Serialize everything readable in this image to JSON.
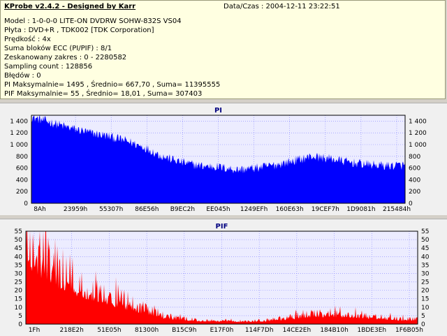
{
  "header": {
    "app_title": "KProbe v2.4.2 - Designed by Karr",
    "datetime": "Data/Czas : 2004-12-11 23:22:51",
    "lines": [
      "Model : 1-0-0-0 LITE-ON DVDRW SOHW-832S  VS04",
      "Płyta : DVD+R , TDK002 [TDK Corporation]",
      "Prędkość : 4x",
      "Suma bloków ECC (PI/PIF) : 8/1",
      "Zeskanowany zakres : 0 - 2280582",
      "Sampling count : 128856",
      "Błędów : 0",
      "PI Maksymalnie= 1495 , Średnio= 667,70 , Suma= 11395555",
      "PIF Maksymalnie= 55 , Średnio= 18,01 , Suma= 307403"
    ]
  },
  "colors": {
    "pi": "#0000ff",
    "pif": "#ff0000",
    "plot_bg": "#ececff",
    "grid": "#8080ff",
    "title": "#000080"
  },
  "chart_data": [
    {
      "type": "area",
      "title": "PI",
      "xlabel": "",
      "ylabel": "",
      "ylim": [
        0,
        1500
      ],
      "yticks": [
        0,
        200,
        400,
        600,
        800,
        1000,
        1200,
        1400
      ],
      "ytick_labels": [
        "0",
        "200",
        "400",
        "600",
        "800",
        "1 000",
        "1 200",
        "1 400"
      ],
      "xtick_labels": [
        "8Ah",
        "23959h",
        "55307h",
        "86E56h",
        "B9EC2h",
        "EE045h",
        "1249EFh",
        "160E63h",
        "19CEF7h",
        "1D9081h",
        "215484h"
      ],
      "grid": true,
      "series": [
        {
          "color": "#0000ff",
          "x": [
            0,
            0.05,
            0.1,
            0.15,
            0.2,
            0.25,
            0.3,
            0.35,
            0.4,
            0.45,
            0.5,
            0.55,
            0.6,
            0.65,
            0.7,
            0.75,
            0.8,
            0.85,
            0.9,
            0.95,
            1.0
          ],
          "values": [
            1470,
            1380,
            1290,
            1210,
            1150,
            1070,
            960,
            800,
            700,
            640,
            620,
            570,
            600,
            650,
            720,
            800,
            760,
            700,
            660,
            640,
            650
          ]
        }
      ]
    },
    {
      "type": "area",
      "title": "PIF",
      "xlabel": "",
      "ylabel": "",
      "ylim": [
        0,
        55
      ],
      "yticks": [
        0,
        5,
        10,
        15,
        20,
        25,
        30,
        35,
        40,
        45,
        50,
        55
      ],
      "ytick_labels": [
        "0",
        "5",
        "10",
        "15",
        "20",
        "25",
        "30",
        "35",
        "40",
        "45",
        "50",
        "55"
      ],
      "xtick_labels": [
        "1Fh",
        "218E2h",
        "51E05h",
        "81300h",
        "B15C9h",
        "E17F0h",
        "114F7Dh",
        "14CE2Eh",
        "184B10h",
        "1BDE3Eh",
        "1F6B05h"
      ],
      "grid": true,
      "series": [
        {
          "color": "#ff0000",
          "x": [
            0,
            0.04,
            0.08,
            0.12,
            0.16,
            0.2,
            0.25,
            0.3,
            0.35,
            0.4,
            0.45,
            0.5,
            0.55,
            0.6,
            0.65,
            0.7,
            0.75,
            0.8,
            0.85,
            0.9,
            0.95,
            1.0
          ],
          "values": [
            46,
            40,
            32,
            26,
            22,
            18,
            13,
            9,
            5,
            3,
            2,
            2,
            1.5,
            2,
            3,
            5,
            6,
            6,
            5,
            4,
            3,
            3
          ]
        }
      ]
    }
  ]
}
